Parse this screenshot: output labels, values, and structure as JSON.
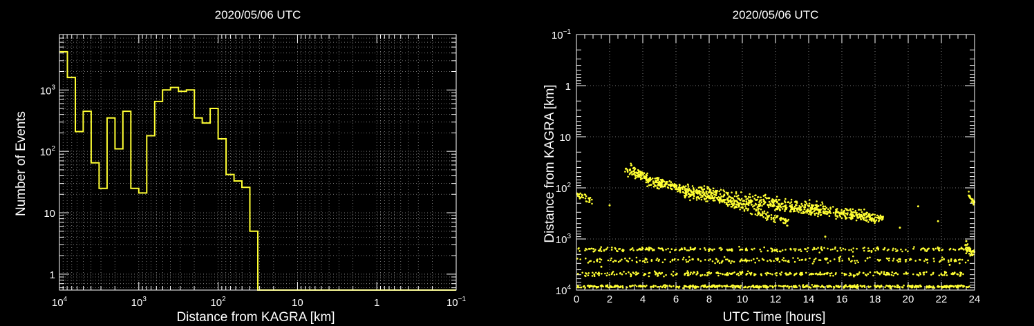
{
  "colors": {
    "background": "#000000",
    "axes": "#ffffff",
    "grid": "#9a9a9a",
    "series": "#ffff33"
  },
  "chart_data": [
    {
      "type": "histogram",
      "title": "2020/05/06 UTC",
      "xlabel": "Distance from KAGRA [km]",
      "ylabel": "Number of Events",
      "x_scale": "log",
      "x_reversed": true,
      "xlim": [
        10000,
        0.1
      ],
      "y_scale": "log",
      "ylim": [
        0.55,
        8000
      ],
      "grid": true,
      "x_ticks": [
        {
          "base": "10",
          "exp": "4",
          "value": 10000
        },
        {
          "base": "10",
          "exp": "3",
          "value": 1000
        },
        {
          "base": "10",
          "exp": "2",
          "value": 100
        },
        {
          "base": "10",
          "exp": "",
          "value": 10
        },
        {
          "base": "1",
          "exp": "",
          "value": 1
        },
        {
          "base": "10",
          "exp": "−1",
          "value": 0.1
        }
      ],
      "y_ticks": [
        {
          "base": "1",
          "exp": "",
          "value": 1
        },
        {
          "base": "10",
          "exp": "",
          "value": 10
        },
        {
          "base": "10",
          "exp": "2",
          "value": 100
        },
        {
          "base": "10",
          "exp": "3",
          "value": 1000
        }
      ],
      "bin_edges_log10": [
        4.0,
        3.9,
        3.8,
        3.7,
        3.6,
        3.5,
        3.4,
        3.3,
        3.2,
        3.1,
        3.0,
        2.9,
        2.8,
        2.7,
        2.6,
        2.5,
        2.4,
        2.3,
        2.2,
        2.1,
        2.0,
        1.9,
        1.8,
        1.7,
        1.6,
        1.5
      ],
      "values": [
        4200,
        1600,
        210,
        450,
        65,
        25,
        350,
        110,
        450,
        25,
        21,
        180,
        650,
        1000,
        1100,
        950,
        1000,
        350,
        290,
        500,
        160,
        42,
        33,
        26,
        5
      ]
    },
    {
      "type": "scatter",
      "title": "2020/05/06 UTC",
      "xlabel": "UTC Time [hours]",
      "ylabel": "Distance from KAGRA [km]",
      "xlim": [
        0,
        24
      ],
      "y_scale": "log",
      "y_reversed": true,
      "ylim": [
        0.1,
        10000
      ],
      "grid": true,
      "x_ticks": [
        "0",
        "2",
        "4",
        "6",
        "8",
        "10",
        "12",
        "14",
        "16",
        "18",
        "20",
        "22",
        "24"
      ],
      "y_ticks": [
        {
          "base": "10",
          "exp": "−1",
          "value": 0.1
        },
        {
          "base": "1",
          "exp": "",
          "value": 1
        },
        {
          "base": "10",
          "exp": "",
          "value": 10
        },
        {
          "base": "10",
          "exp": "2",
          "value": 100
        },
        {
          "base": "10",
          "exp": "3",
          "value": 1000
        },
        {
          "base": "10",
          "exp": "4",
          "value": 10000
        }
      ],
      "bands": [
        {
          "t": [
            0,
            23.7
          ],
          "dist": [
            8500,
            8500
          ],
          "spread": 0.025,
          "n": 520
        },
        {
          "t": [
            0,
            23.7
          ],
          "dist": [
            4800,
            4800
          ],
          "spread": 0.04,
          "n": 300
        },
        {
          "t": [
            0,
            23.7
          ],
          "dist": [
            2600,
            2600
          ],
          "spread": 0.05,
          "n": 220
        },
        {
          "t": [
            0,
            23.7
          ],
          "dist": [
            1600,
            1600
          ],
          "spread": 0.04,
          "n": 260
        },
        {
          "t": [
            6.5,
            18.2
          ],
          "dist": [
            140,
            420
          ],
          "spread": 0.07,
          "n": 350
        },
        {
          "t": [
            3.2,
            13.0
          ],
          "dist": [
            50,
            480
          ],
          "spread": 0.08,
          "n": 260
        },
        {
          "t": [
            4.2,
            18.5
          ],
          "dist": [
            80,
            380
          ],
          "spread": 0.09,
          "n": 420
        },
        {
          "t": [
            2.9,
            5.2
          ],
          "dist": [
            40,
            90
          ],
          "spread": 0.12,
          "n": 90
        },
        {
          "t": [
            0,
            1.0
          ],
          "dist": [
            130,
            180
          ],
          "spread": 0.06,
          "n": 30
        },
        {
          "t": [
            23.6,
            24.0
          ],
          "dist": [
            130,
            200
          ],
          "spread": 0.08,
          "n": 25
        },
        {
          "t": [
            23.4,
            24.0
          ],
          "dist": [
            1400,
            2000
          ],
          "spread": 0.08,
          "n": 40
        }
      ],
      "isolated_points": [
        {
          "t": 2.0,
          "dist": 220
        },
        {
          "t": 9.5,
          "dist": 200
        },
        {
          "t": 20.6,
          "dist": 230
        },
        {
          "t": 21.8,
          "dist": 450
        },
        {
          "t": 23.5,
          "dist": 1100
        },
        {
          "t": 15.0,
          "dist": 900
        },
        {
          "t": 19.5,
          "dist": 600
        },
        {
          "t": 22.5,
          "dist": 3200
        },
        {
          "t": 1.5,
          "dist": 3500
        }
      ]
    }
  ]
}
